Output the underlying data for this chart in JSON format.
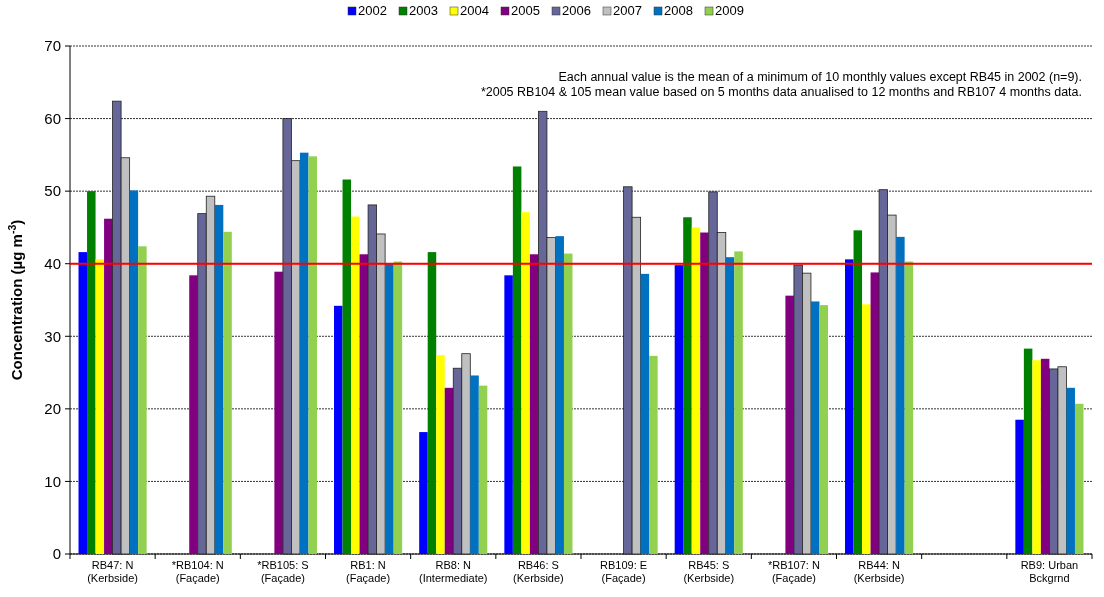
{
  "chart_data": {
    "type": "bar",
    "ylabel": "Concentration (µg m$^{-3}$)",
    "categories": [
      "RB47: N\n(Kerbside)",
      "*RB104: N\n(Façade)",
      "*RB105: S\n(Façade)",
      "RB1: N\n(Façade)",
      "RB8: N\n(Intermediate)",
      "RB46: S\n(Kerbside)",
      "RB109: E\n(Façade)",
      "RB45: S\n(Kerbside)",
      "*RB107: N\n(Façade)",
      "RB44: N\n(Kerbside)",
      null,
      "RB9: Urban\nBckgrnd"
    ],
    "series": [
      {
        "name": "2002",
        "color": "#0000ff",
        "values": [
          41.6,
          null,
          null,
          34.2,
          16.8,
          38.4,
          null,
          39.8,
          null,
          40.6,
          null,
          18.5
        ]
      },
      {
        "name": "2003",
        "color": "#008000",
        "values": [
          50,
          null,
          null,
          51.6,
          41.6,
          53.4,
          null,
          46.4,
          null,
          44.6,
          null,
          28.3
        ]
      },
      {
        "name": "2004",
        "color": "#ffff00",
        "values": [
          40.6,
          null,
          null,
          46.5,
          27.4,
          47.1,
          null,
          45,
          null,
          34.4,
          null,
          26.7
        ]
      },
      {
        "name": "2005",
        "color": "#800080",
        "values": [
          46.2,
          38.4,
          38.9,
          41.3,
          22.9,
          41.3,
          null,
          44.3,
          35.6,
          38.8,
          null,
          26.9
        ]
      },
      {
        "name": "2006",
        "color": "#666699",
        "values": [
          62.4,
          46.9,
          60,
          48.1,
          25.6,
          61,
          50.6,
          49.9,
          39.8,
          50.2,
          null,
          25.5
        ]
      },
      {
        "name": "2007",
        "color": "#c0c0c0",
        "values": [
          54.6,
          49.3,
          54.2,
          44.1,
          27.6,
          43.6,
          46.4,
          44.3,
          38.7,
          46.7,
          null,
          25.8
        ]
      },
      {
        "name": "2008",
        "color": "#0070c0",
        "values": [
          50.1,
          48.1,
          55.3,
          40,
          24.6,
          43.8,
          38.6,
          40.9,
          34.8,
          43.7,
          null,
          22.9
        ]
      },
      {
        "name": "2009",
        "color": "#92d050",
        "values": [
          42.4,
          44.4,
          54.8,
          40.3,
          23.2,
          41.4,
          27.3,
          41.7,
          34.3,
          40.3,
          null,
          20.7
        ]
      }
    ],
    "ylim": [
      0,
      70
    ],
    "yticks": [
      0,
      10,
      20,
      30,
      40,
      50,
      60,
      70
    ],
    "grid": "y",
    "legend": "top",
    "ref_lines": [
      {
        "axis": "y",
        "value": 40,
        "color": "#ff0000"
      }
    ],
    "annotations": [
      "Each annual value is the mean of a minimum of 10 monthly values except RB45 in 2002 (n=9).",
      "*2005 RB104 & 105 mean value based on 5 months data anualised to 12 months and RB107 4 months data."
    ]
  }
}
